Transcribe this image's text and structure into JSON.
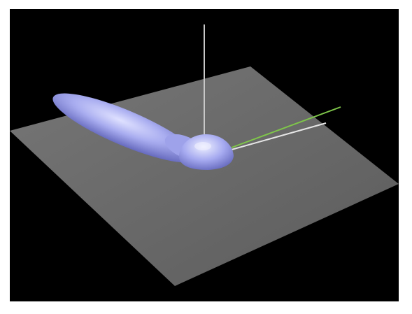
{
  "scene": {
    "background_color": "#000000",
    "frame_color": "#ffffff",
    "plane_color": "#6b6b6b",
    "lobe_color": "#aeb2f2",
    "vertical_axis_color": "#c8c8c8",
    "green_line_color": "#7fc64a",
    "white_line_color": "#e6e6e6",
    "objects": [
      "ground-plane",
      "elongated-lobe",
      "hemisphere-base",
      "vertical-axis",
      "green-ray",
      "white-ray"
    ]
  }
}
